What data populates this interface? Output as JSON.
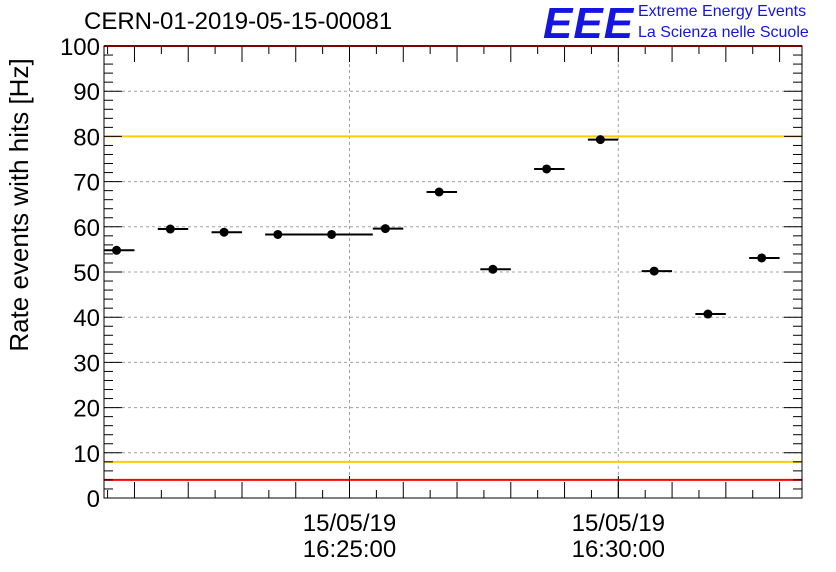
{
  "title": "CERN-01-2019-05-15-00081",
  "logo": {
    "mark": "EEE",
    "line1": "Extreme Energy Events",
    "line2": "La Scienza nelle Scuole"
  },
  "colors": {
    "limit_red": "#ff0000",
    "limit_yellow": "#ffcc00",
    "logo_blue": "#1515e0",
    "marker": "#000000",
    "grid": "#a0a0a0"
  },
  "chart_data": {
    "type": "scatter",
    "title": "CERN-01-2019-05-15-00081",
    "xlabel": "",
    "ylabel": "Rate events with hits [Hz]",
    "ylim": [
      0,
      100
    ],
    "xlim": [
      "15/05/19 16:20:26",
      "15/05/19 16:33:25"
    ],
    "x_tick_labels": [
      {
        "date": "15/05/19",
        "time": "16:25:00"
      },
      {
        "date": "15/05/19",
        "time": "16:30:00"
      }
    ],
    "y_ticks": [
      0,
      10,
      20,
      30,
      40,
      50,
      60,
      70,
      80,
      90,
      100
    ],
    "grid": true,
    "reference_lines": [
      {
        "y": 100,
        "color": "#ff0000"
      },
      {
        "y": 80,
        "color": "#ffcc00"
      },
      {
        "y": 8,
        "color": "#ffcc00"
      },
      {
        "y": 4,
        "color": "#ff0000"
      }
    ],
    "series": [
      {
        "x": [
          "16:20:40",
          "16:21:40",
          "16:22:40",
          "16:23:40",
          "16:24:40",
          "16:25:40",
          "16:26:40",
          "16:27:40",
          "16:28:40",
          "16:29:40",
          "16:30:40",
          "16:31:40",
          "16:32:40"
        ],
        "x_start": [
          "16:20:26",
          "16:21:26",
          "16:22:26",
          "16:23:26",
          "16:23:26",
          "16:25:26",
          "16:26:26",
          "16:27:26",
          "16:28:26",
          "16:29:26",
          "16:30:26",
          "16:31:26",
          "16:32:26"
        ],
        "x_end": [
          "16:21:00",
          "16:22:00",
          "16:23:00",
          "16:24:00",
          "16:25:26",
          "16:26:00",
          "16:27:00",
          "16:28:00",
          "16:29:00",
          "16:30:00",
          "16:31:00",
          "16:32:00",
          "16:33:00"
        ],
        "values": [
          54.8,
          59.5,
          58.8,
          58.3,
          58.3,
          59.6,
          67.7,
          50.6,
          72.8,
          79.3,
          50.2,
          40.7,
          53.1
        ]
      }
    ]
  }
}
